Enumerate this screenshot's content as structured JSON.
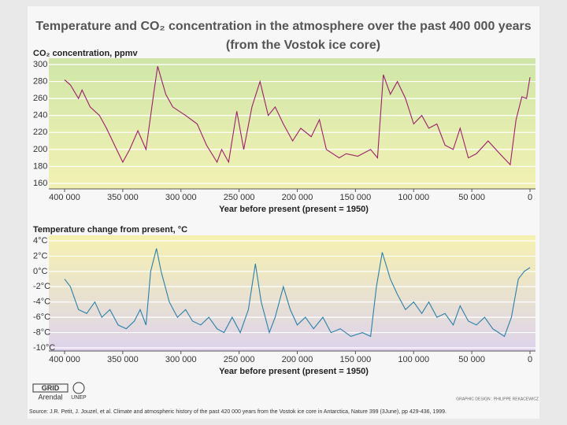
{
  "title": "Temperature and CO₂ concentration in the atmosphere over the past 400 000 years",
  "subtitle": "(from the Vostok ice core)",
  "logos": [
    "GRID",
    "Arendal",
    "UNEP"
  ],
  "credit": "GRAPHIC DESIGN : PHILIPPE REKACEWICZ",
  "source": "Source: J.R. Petit, J. Jouzel, et al. Climate and atmospheric history of the past 420 000 years from the Vostok ice core in Antarctica, Nature 399 (3June), pp 429-436, 1999.",
  "chart_data": [
    {
      "type": "line",
      "y_label": "CO₂ concentration, ppmv",
      "x_label": "Year before present (present = 1950)",
      "color": "#9b1f6a",
      "background_colors": [
        "#cfe6a8",
        "#f3f1b4"
      ],
      "grid": true,
      "x": [
        400000,
        395000,
        388000,
        385000,
        378000,
        370000,
        364000,
        357000,
        350000,
        344000,
        337000,
        330000,
        323000,
        320000,
        313000,
        307000,
        296000,
        286000,
        278000,
        269000,
        265000,
        259000,
        252000,
        246000,
        239000,
        232000,
        225000,
        219000,
        212000,
        204000,
        197000,
        188000,
        181000,
        175000,
        164000,
        158000,
        148000,
        137000,
        131000,
        126000,
        120000,
        114000,
        107000,
        100000,
        93000,
        87000,
        80000,
        73000,
        66000,
        60000,
        53000,
        46000,
        36000,
        26000,
        17000,
        12000,
        7000,
        3000,
        0
      ],
      "values": [
        282,
        276,
        260,
        270,
        250,
        240,
        225,
        205,
        185,
        200,
        222,
        200,
        270,
        298,
        265,
        250,
        240,
        230,
        205,
        185,
        200,
        185,
        245,
        200,
        250,
        280,
        240,
        250,
        230,
        210,
        225,
        215,
        235,
        200,
        190,
        195,
        192,
        200,
        190,
        288,
        265,
        280,
        260,
        230,
        240,
        225,
        230,
        205,
        200,
        225,
        190,
        195,
        210,
        195,
        182,
        235,
        262,
        260,
        285
      ],
      "xlim": [
        400000,
        0
      ],
      "xticks": [
        {
          "value": 400000,
          "label": "400 000"
        },
        {
          "value": 350000,
          "label": "350 000"
        },
        {
          "value": 300000,
          "label": "300 000"
        },
        {
          "value": 250000,
          "label": "250 000"
        },
        {
          "value": 200000,
          "label": "200 000"
        },
        {
          "value": 150000,
          "label": "150 000"
        },
        {
          "value": 100000,
          "label": "100 000"
        },
        {
          "value": 50000,
          "label": "50 000"
        },
        0
      ],
      "ylim": [
        160,
        300
      ],
      "yticks": [
        160,
        180,
        200,
        220,
        240,
        260,
        280,
        300
      ]
    },
    {
      "type": "line",
      "y_label": "Temperature change from present, °C",
      "x_label": "Year before present (present = 1950)",
      "color": "#2a7fa8",
      "background_colors": [
        "#f6f1b0",
        "#ddd3ec"
      ],
      "grid": true,
      "x": [
        400000,
        395000,
        388000,
        381000,
        374000,
        368000,
        361000,
        354000,
        347000,
        340000,
        335000,
        330000,
        326000,
        321000,
        317000,
        310000,
        303000,
        296000,
        290000,
        283000,
        276000,
        269000,
        263000,
        256000,
        249000,
        242000,
        236000,
        231000,
        224000,
        219000,
        212000,
        206000,
        200000,
        193000,
        186000,
        178000,
        171000,
        163000,
        154000,
        144000,
        137000,
        132000,
        127000,
        120000,
        114000,
        107000,
        100000,
        93000,
        87000,
        80000,
        73000,
        66000,
        60000,
        53000,
        46000,
        39000,
        32000,
        22000,
        16000,
        10000,
        5000,
        0
      ],
      "values": [
        -1,
        -2,
        -5,
        -5.5,
        -4,
        -6,
        -5,
        -7,
        -7.5,
        -6.5,
        -5,
        -7,
        0,
        3,
        0,
        -4,
        -6,
        -5,
        -6.5,
        -7,
        -6,
        -7.5,
        -8,
        -6,
        -8,
        -5,
        1,
        -4,
        -8,
        -6,
        -2,
        -5,
        -7,
        -6,
        -7.5,
        -6,
        -8,
        -7.5,
        -8.5,
        -8,
        -8.5,
        -2,
        2.5,
        -1,
        -3,
        -5,
        -4,
        -5.5,
        -4,
        -6,
        -5.5,
        -7,
        -4.5,
        -6.5,
        -7,
        -6,
        -7.5,
        -8.5,
        -6,
        -1,
        0,
        0.5
      ],
      "xlim": [
        400000,
        0
      ],
      "xticks": [
        {
          "value": 400000,
          "label": "400 000"
        },
        {
          "value": 350000,
          "label": "350 000"
        },
        {
          "value": 300000,
          "label": "300 000"
        },
        {
          "value": 250000,
          "label": "250 000"
        },
        {
          "value": 200000,
          "label": "200 000"
        },
        {
          "value": 150000,
          "label": "150 000"
        },
        {
          "value": 100000,
          "label": "100 000"
        },
        {
          "value": 50000,
          "label": "50 000"
        },
        0
      ],
      "ylim": [
        -10,
        4
      ],
      "yticks": [
        {
          "value": -10,
          "label": "-10°C"
        },
        {
          "value": -8,
          "label": "-8°C"
        },
        {
          "value": -6,
          "label": "-6°C"
        },
        {
          "value": -4,
          "label": "-4°C"
        },
        {
          "value": -2,
          "label": "-2°C"
        },
        {
          "value": 0,
          "label": "0°C"
        },
        {
          "value": 2,
          "label": "2°C"
        },
        {
          "value": 4,
          "label": "4°C"
        }
      ]
    }
  ]
}
